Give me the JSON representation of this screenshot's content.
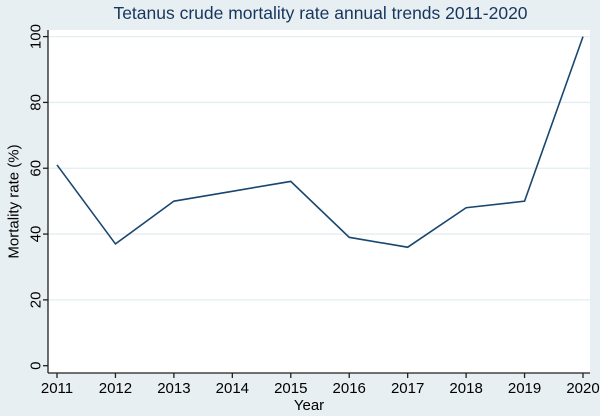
{
  "chart_data": {
    "type": "line",
    "title": "Tetanus crude mortality rate annual trends 2011-2020",
    "xlabel": "Year",
    "ylabel": "Mortality rate (%)",
    "x": [
      2011,
      2012,
      2013,
      2014,
      2015,
      2016,
      2017,
      2018,
      2019,
      2020
    ],
    "series": [
      {
        "name": "Tetanus crude mortality rate (%)",
        "values": [
          61,
          37,
          50,
          53,
          56,
          39,
          36,
          48,
          50,
          100
        ]
      }
    ],
    "ylim": [
      0,
      100
    ],
    "yticks": [
      0,
      20,
      40,
      60,
      80,
      100
    ],
    "grid": "horizontal",
    "legend_position": "none",
    "y_tick_label_rotation_deg": 90,
    "colors": {
      "line": "#1a476f",
      "title_text": "#17365d",
      "figure_background": "#e8eff3",
      "plot_background": "#ffffff",
      "gridline": "#e3eef1",
      "axis_line": "#1f1f1f",
      "tick_label_text": "#000000"
    }
  }
}
